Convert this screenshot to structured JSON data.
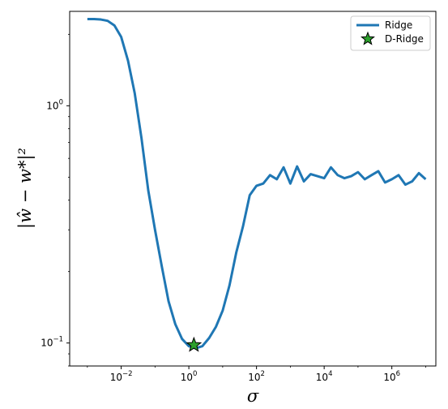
{
  "chart_data": {
    "type": "line",
    "xlabel": "σ",
    "ylabel": "|ŵ − w*|²",
    "xscale": "log",
    "yscale": "log",
    "xlim": [
      0.0003,
      20000000
    ],
    "ylim": [
      0.08,
      2.5
    ],
    "grid": false,
    "legend_placement": "top-right",
    "x_ticks": [
      {
        "value": 0.01,
        "base": "10",
        "exp": "−2"
      },
      {
        "value": 1,
        "base": "10",
        "exp": "0"
      },
      {
        "value": 100,
        "base": "10",
        "exp": "2"
      },
      {
        "value": 10000,
        "base": "10",
        "exp": "4"
      },
      {
        "value": 1000000,
        "base": "10",
        "exp": "6"
      }
    ],
    "y_ticks": [
      {
        "value": 0.1,
        "base": "10",
        "exp": "−1"
      },
      {
        "value": 1,
        "base": "10",
        "exp": "0"
      }
    ],
    "series": [
      {
        "name": "Ridge",
        "kind": "line",
        "color": "#1f77b4",
        "x": [
          0.001,
          0.00159,
          0.00251,
          0.00398,
          0.00631,
          0.01,
          0.0159,
          0.0251,
          0.0398,
          0.0631,
          0.1,
          0.159,
          0.251,
          0.398,
          0.631,
          1.0,
          1.585,
          2.51,
          3.98,
          6.31,
          10,
          15.9,
          25.1,
          39.8,
          63.1,
          100,
          158,
          251,
          398,
          631,
          1000,
          1585,
          2512,
          3981,
          6310,
          10000,
          15849,
          25119,
          39811,
          63096,
          100000,
          158489,
          251189,
          398107,
          630957,
          1000000,
          1584893,
          2511886,
          3981072,
          6309573,
          10000000
        ],
        "y": [
          2.32,
          2.32,
          2.31,
          2.28,
          2.18,
          1.95,
          1.55,
          1.13,
          0.73,
          0.44,
          0.3,
          0.21,
          0.15,
          0.12,
          0.104,
          0.097,
          0.095,
          0.097,
          0.105,
          0.117,
          0.137,
          0.175,
          0.24,
          0.31,
          0.42,
          0.46,
          0.47,
          0.51,
          0.49,
          0.55,
          0.47,
          0.555,
          0.48,
          0.515,
          0.505,
          0.495,
          0.55,
          0.51,
          0.495,
          0.505,
          0.525,
          0.49,
          0.51,
          0.53,
          0.475,
          0.49,
          0.51,
          0.465,
          0.48,
          0.52,
          0.49
        ]
      },
      {
        "name": "D-Ridge",
        "kind": "marker",
        "marker": "star",
        "color": "#2ca02c",
        "x": [
          1.41
        ],
        "y": [
          0.098
        ]
      }
    ]
  }
}
